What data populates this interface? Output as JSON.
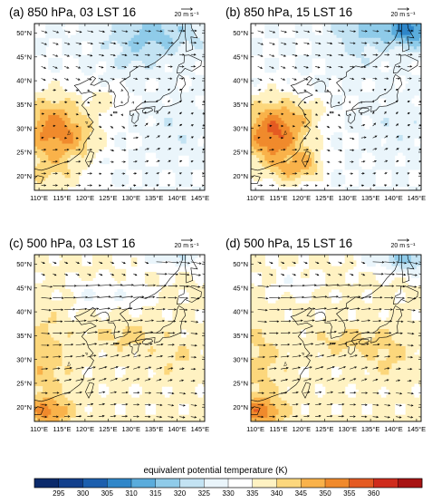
{
  "figure": {
    "colorbar": {
      "title": "equivalent potential temperature (K)",
      "ticks": [
        "295",
        "300",
        "305",
        "310",
        "315",
        "320",
        "325",
        "330",
        "335",
        "340",
        "345",
        "350",
        "355",
        "360"
      ],
      "colors": [
        "#0b2a6b",
        "#123f8c",
        "#1c5fae",
        "#2f86c9",
        "#5aacdc",
        "#8fcbe9",
        "#c3e3f3",
        "#eaf5fb",
        "#ffffff",
        "#fff2c2",
        "#fcd77c",
        "#f9b24a",
        "#f08a2c",
        "#e45a22",
        "#cf2b1c",
        "#a81313"
      ]
    },
    "reference_vector_label": "20 m s⁻¹",
    "land_color": "#ffffff",
    "coastline_color": "#000000"
  },
  "chart_data": [
    {
      "type": "heatmap",
      "title": "(a) 850 hPa, 03 LST 16",
      "x_ticks": [
        "110°E",
        "115°E",
        "120°E",
        "125°E",
        "130°E",
        "135°E",
        "140°E",
        "145°E"
      ],
      "y_ticks": [
        "50°N",
        "45°N",
        "40°N",
        "35°N",
        "30°N",
        "25°N",
        "20°N"
      ],
      "xlim": [
        109,
        146
      ],
      "ylim": [
        17,
        52
      ],
      "field": "equivalent potential temperature (K)",
      "max_theta_e": 356,
      "min_theta_e": 318
    },
    {
      "type": "heatmap",
      "title": "(b) 850 hPa, 15 LST 16",
      "x_ticks": [
        "110°E",
        "115°E",
        "120°E",
        "125°E",
        "130°E",
        "135°E",
        "140°E",
        "145°E"
      ],
      "y_ticks": [
        "50°N",
        "45°N",
        "40°N",
        "35°N",
        "30°N",
        "25°N",
        "20°N"
      ],
      "xlim": [
        109,
        146
      ],
      "ylim": [
        17,
        52
      ],
      "field": "equivalent potential temperature (K)",
      "max_theta_e": 358,
      "min_theta_e": 312
    },
    {
      "type": "heatmap",
      "title": "(c) 500 hPa, 03 LST 16",
      "x_ticks": [
        "110°E",
        "115°E",
        "120°E",
        "125°E",
        "130°E",
        "135°E",
        "140°E",
        "145°E"
      ],
      "y_ticks": [
        "50°N",
        "45°N",
        "40°N",
        "35°N",
        "30°N",
        "25°N",
        "20°N"
      ],
      "xlim": [
        109,
        146
      ],
      "ylim": [
        17,
        52
      ],
      "field": "equivalent potential temperature (K)",
      "max_theta_e": 352,
      "min_theta_e": 318
    },
    {
      "type": "heatmap",
      "title": "(d) 500 hPa, 15 LST 16",
      "x_ticks": [
        "110°E",
        "115°E",
        "120°E",
        "125°E",
        "130°E",
        "135°E",
        "140°E",
        "145°E"
      ],
      "y_ticks": [
        "50°N",
        "45°N",
        "40°N",
        "35°N",
        "30°N",
        "25°N",
        "20°N"
      ],
      "xlim": [
        109,
        146
      ],
      "ylim": [
        17,
        52
      ],
      "field": "equivalent potential temperature (K)",
      "max_theta_e": 352,
      "min_theta_e": 312
    }
  ]
}
